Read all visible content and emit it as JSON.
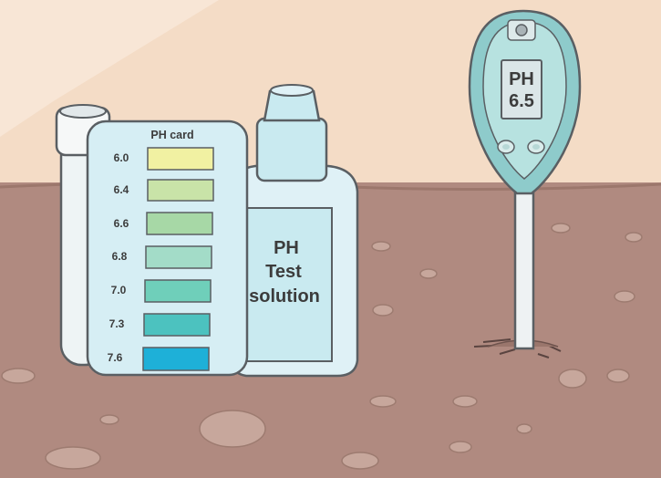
{
  "ph_card": {
    "title": "PH card",
    "scale": [
      {
        "label": "6.0",
        "color": "#f1f1a2"
      },
      {
        "label": "6.4",
        "color": "#c9e3a8"
      },
      {
        "label": "6.6",
        "color": "#a7d8a6"
      },
      {
        "label": "6.8",
        "color": "#a3dcc8"
      },
      {
        "label": "7.0",
        "color": "#6fcfba"
      },
      {
        "label": "7.3",
        "color": "#4cc2bf"
      },
      {
        "label": "7.6",
        "color": "#1eb0d8"
      }
    ]
  },
  "test_bottle": {
    "label_lines": [
      "PH",
      "Test",
      "solution"
    ]
  },
  "ph_meter": {
    "label": "PH",
    "reading": "6.5"
  },
  "colors": {
    "wall": "#f4dcc6",
    "soil": "#b08a80",
    "card": "#d6eef4",
    "meter_body": "#8ecbcb"
  }
}
